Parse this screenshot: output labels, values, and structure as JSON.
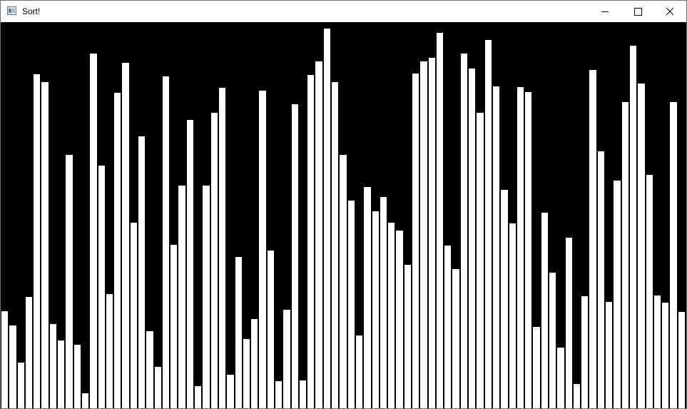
{
  "window": {
    "title": "Sort!",
    "icon": "app-window-icon",
    "controls": [
      {
        "name": "minimize-icon"
      },
      {
        "name": "maximize-icon"
      },
      {
        "name": "close-icon"
      }
    ]
  },
  "visualization": {
    "bar_color": "#ffffff",
    "bar_border": "#000000",
    "background": "#000000",
    "max_value": 535,
    "values": [
      137,
      117,
      65,
      157,
      469,
      458,
      119,
      96,
      356,
      90,
      22,
      498,
      341,
      161,
      443,
      485,
      261,
      382,
      109,
      59,
      466,
      230,
      313,
      405,
      32,
      313,
      415,
      450,
      48,
      213,
      98,
      126,
      446,
      222,
      39,
      139,
      427,
      40,
      468,
      487,
      533,
      458,
      356,
      292,
      103,
      311,
      277,
      297,
      261,
      250,
      202,
      470,
      487,
      492,
      527,
      229,
      196,
      498,
      477,
      415,
      517,
      452,
      307,
      260,
      451,
      444,
      115,
      275,
      191,
      86,
      240,
      35,
      158,
      475,
      361,
      150,
      320,
      430,
      509,
      456,
      328,
      159,
      149,
      430,
      136
    ]
  }
}
